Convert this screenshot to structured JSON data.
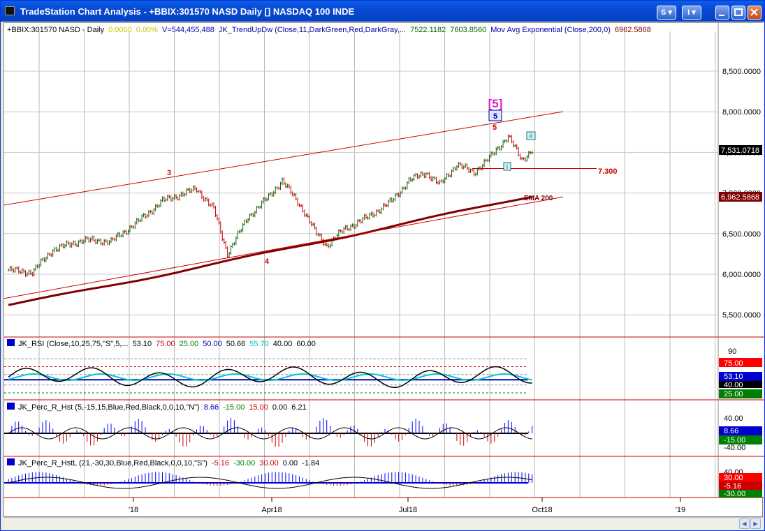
{
  "window": {
    "title": "TradeStation Chart Analysis - +BBIX:301570 NASD Daily [] NASDAQ 100 INDE",
    "buttons": {
      "s_label": "S",
      "i_label": "I"
    }
  },
  "price_panel": {
    "header": [
      {
        "text": "+BBIX:301570 NASD - Daily",
        "color": "#000000"
      },
      {
        "text": "0.0000",
        "color": "#c8c800"
      },
      {
        "text": "0.00%",
        "color": "#c8c800"
      },
      {
        "text": "V=544,455,488",
        "color": "#0000aa"
      },
      {
        "text": "JK_TrendUpDw (Close,11,DarkGreen,Red,DarkGray,...",
        "color": "#0000aa"
      },
      {
        "text": "7522.1182",
        "color": "#006400"
      },
      {
        "text": "7603.8560",
        "color": "#006400"
      },
      {
        "text": "Mov Avg Exponential (Close,200,0)",
        "color": "#0000aa"
      },
      {
        "text": "6962.5868",
        "color": "#800000"
      }
    ],
    "y_ticks": [
      "8,500.0000",
      "8,000.0000",
      "7,500.0000",
      "7,000.0000",
      "6,500.0000",
      "6,000.0000",
      "5,500.0000"
    ],
    "last_price": "7,531.0718",
    "ema_value": "6,962.5868",
    "annotations": {
      "wave_3": "3",
      "wave_4": "4",
      "wave_5_red": "5",
      "wave_5_circled": "5",
      "wave_5_bracket": "[5]",
      "wave_i": "i",
      "wave_ii": "ii",
      "level_label": "7.300",
      "ema_label": "EMA 200"
    }
  },
  "rsi_panel": {
    "header": [
      {
        "text": "JK_RSI (Close,10,25,75,\"S\",5,...",
        "color": "#000000"
      },
      {
        "text": "53.10",
        "color": "#000000"
      },
      {
        "text": "75.00",
        "color": "#cc0000"
      },
      {
        "text": "25.00",
        "color": "#008000"
      },
      {
        "text": "50.00",
        "color": "#0000aa"
      },
      {
        "text": "50.66",
        "color": "#000000"
      },
      {
        "text": "55.70",
        "color": "#00bbbb"
      },
      {
        "text": "40.00",
        "color": "#000000"
      },
      {
        "text": "60.00",
        "color": "#000000"
      }
    ],
    "y_ticks": [
      "90",
      "75.00",
      "53.10",
      "40.00",
      "25.00"
    ]
  },
  "perc_panel": {
    "header": [
      {
        "text": "JK_Perc_R_Hst (5,-15,15,Blue,Red,Black,0,0,10,\"N\")",
        "color": "#000000"
      },
      {
        "text": "8.66",
        "color": "#0000cc"
      },
      {
        "text": "-15.00",
        "color": "#008000"
      },
      {
        "text": "15.00",
        "color": "#cc0000"
      },
      {
        "text": "0.00",
        "color": "#000000"
      },
      {
        "text": "6.21",
        "color": "#000000"
      }
    ],
    "y_ticks": [
      "40.00",
      "8.66",
      "-15.00",
      "-40.00"
    ]
  },
  "percl_panel": {
    "header": [
      {
        "text": "JK_Perc_R_HstL (21,-30,30,Blue,Red,Black,0,0,10,\"S\")",
        "color": "#000000"
      },
      {
        "text": "-5.16",
        "color": "#cc0000"
      },
      {
        "text": "-30.00",
        "color": "#008000"
      },
      {
        "text": "30.00",
        "color": "#cc0000"
      },
      {
        "text": "0.00",
        "color": "#000000"
      },
      {
        "text": "-1.84",
        "color": "#000000"
      }
    ],
    "y_ticks": [
      "40.00",
      "30.00",
      "-5.16",
      "-30.00"
    ]
  },
  "x_axis": {
    "labels": [
      "'18",
      "Apr18",
      "Jul18",
      "Oct18",
      "'19"
    ]
  },
  "colors": {
    "window_frame": "#0831d9",
    "price_up": "#006400",
    "price_down": "#cc0000",
    "channel": "#cc0000",
    "ema": "#800000",
    "rsi_cyan": "#00c8d8",
    "histogram_blue": "#0000ff",
    "histogram_red": "#cc0000"
  },
  "chart_data": {
    "type": "line",
    "title": "+BBIX:301570 NASD Daily NASDAQ 100",
    "symbol": "+BBIX:301570",
    "ylim": [
      5300,
      8950
    ],
    "y_ticks": [
      5500,
      6000,
      6500,
      7000,
      7500,
      8000,
      8500
    ],
    "x_labels": [
      "'18",
      "Apr18",
      "Jul18",
      "Oct18",
      "'19"
    ],
    "last_close": 7531.07,
    "series": [
      {
        "name": "JK_TrendUpDw",
        "x": [
          "2017-10-20",
          "2017-11-10",
          "2017-12-01",
          "2017-12-22",
          "2018-01-12",
          "2018-01-26",
          "2018-02-08",
          "2018-02-26",
          "2018-03-12",
          "2018-03-23",
          "2018-04-02",
          "2018-04-20",
          "2018-05-11",
          "2018-06-01",
          "2018-06-20",
          "2018-07-03",
          "2018-07-25",
          "2018-08-10",
          "2018-08-29",
          "2018-09-11",
          "2018-09-21"
        ],
        "values": [
          6050,
          6280,
          6400,
          6420,
          6750,
          7000,
          6450,
          6900,
          7150,
          6750,
          6400,
          6800,
          6950,
          7200,
          7300,
          7050,
          7400,
          7350,
          7720,
          7400,
          7531
        ]
      },
      {
        "name": "Mov Avg Exponential",
        "x": [
          "2017-10-20",
          "2017-12-01",
          "2018-01-12",
          "2018-02-26",
          "2018-04-02",
          "2018-05-11",
          "2018-06-20",
          "2018-07-25",
          "2018-08-29",
          "2018-09-21"
        ],
        "values": [
          5650,
          5800,
          5950,
          6150,
          6330,
          6420,
          6580,
          6700,
          6880,
          6963
        ]
      }
    ],
    "annotations": [
      {
        "label": "3",
        "x": "2018-01-26",
        "y": 7000
      },
      {
        "label": "4",
        "x": "2018-04-02",
        "y": 6400
      },
      {
        "label": "5",
        "x": "2018-08-29",
        "y": 7720
      },
      {
        "label": "7.300",
        "y": 7300
      }
    ]
  }
}
